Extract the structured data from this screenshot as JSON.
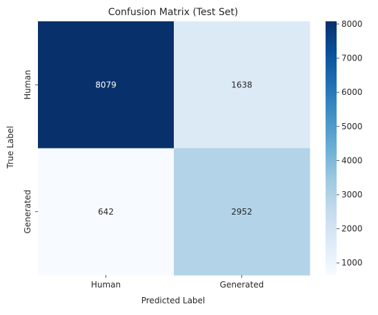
{
  "chart_data": {
    "type": "heatmap",
    "title": "Confusion Matrix (Test Set)",
    "xlabel": "Predicted Label",
    "ylabel": "True Label",
    "x_categories": [
      "Human",
      "Generated"
    ],
    "y_categories": [
      "Human",
      "Generated"
    ],
    "values": [
      [
        8079,
        1638
      ],
      [
        642,
        2952
      ]
    ],
    "colormap": "Blues",
    "colorbar": {
      "min": 642,
      "max": 8079,
      "ticks": [
        1000,
        2000,
        3000,
        4000,
        5000,
        6000,
        7000,
        8000
      ]
    },
    "colors": {
      "dark_text": "#262626",
      "light_text": "#ffffff"
    }
  }
}
